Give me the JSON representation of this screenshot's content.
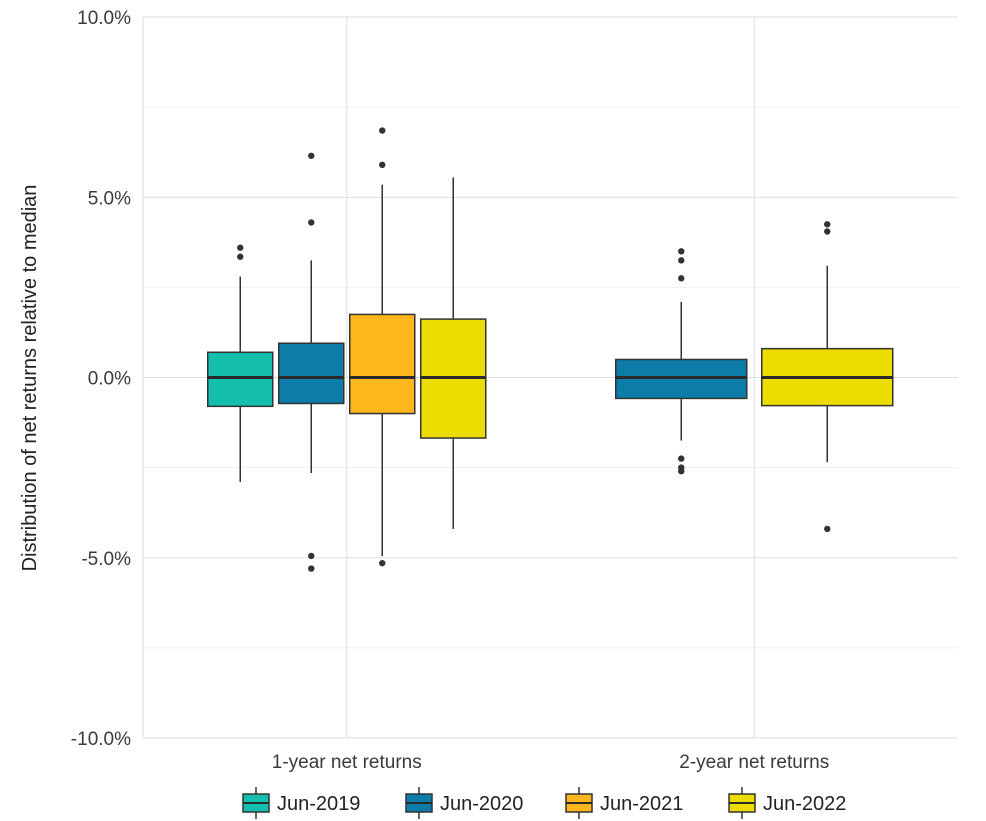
{
  "chart_data": {
    "type": "boxplot",
    "ylabel": "Distribution of net returns relative to median",
    "ylim": [
      -10,
      10
    ],
    "y_ticks": [
      {
        "value": 10,
        "label": "10.0%"
      },
      {
        "value": 5,
        "label": "5.0%"
      },
      {
        "value": 0,
        "label": "0.0%"
      },
      {
        "value": -5,
        "label": "-5.0%"
      },
      {
        "value": -10,
        "label": "-10.0%"
      }
    ],
    "grid": true,
    "legend_position": "bottom",
    "categories": [
      "1-year net returns",
      "2-year net returns"
    ],
    "series": [
      {
        "name": "Jun-2019",
        "color": "#14BFAD",
        "boxes": [
          {
            "category": "1-year net returns",
            "whisker_low": -2.9,
            "q1": -0.8,
            "median": 0.0,
            "q3": 0.7,
            "whisker_high": 2.8,
            "outliers": [
              3.6,
              3.35
            ]
          },
          null
        ]
      },
      {
        "name": "Jun-2020",
        "color": "#0E7CA8",
        "boxes": [
          {
            "category": "1-year net returns",
            "whisker_low": -2.65,
            "q1": -0.72,
            "median": 0.0,
            "q3": 0.95,
            "whisker_high": 3.25,
            "outliers": [
              6.15,
              4.3,
              -4.95,
              -5.3
            ]
          },
          {
            "category": "2-year net returns",
            "whisker_low": -1.75,
            "q1": -0.58,
            "median": 0.0,
            "q3": 0.5,
            "whisker_high": 2.1,
            "outliers": [
              3.5,
              3.25,
              2.75,
              -2.25,
              -2.5,
              -2.6
            ]
          }
        ]
      },
      {
        "name": "Jun-2021",
        "color": "#FDB71C",
        "boxes": [
          {
            "category": "1-year net returns",
            "whisker_low": -4.95,
            "q1": -1.0,
            "median": 0.0,
            "q3": 1.75,
            "whisker_high": 5.35,
            "outliers": [
              6.85,
              5.9,
              -5.15
            ]
          },
          null
        ]
      },
      {
        "name": "Jun-2022",
        "color": "#EDDC00",
        "boxes": [
          {
            "category": "1-year net returns",
            "whisker_low": -4.2,
            "q1": -1.68,
            "median": 0.0,
            "q3": 1.62,
            "whisker_high": 5.55,
            "outliers": []
          },
          {
            "category": "2-year net returns",
            "whisker_low": -2.35,
            "q1": -0.78,
            "median": 0.0,
            "q3": 0.8,
            "whisker_high": 3.1,
            "outliers": [
              4.25,
              4.05,
              -4.2
            ]
          }
        ]
      }
    ]
  }
}
